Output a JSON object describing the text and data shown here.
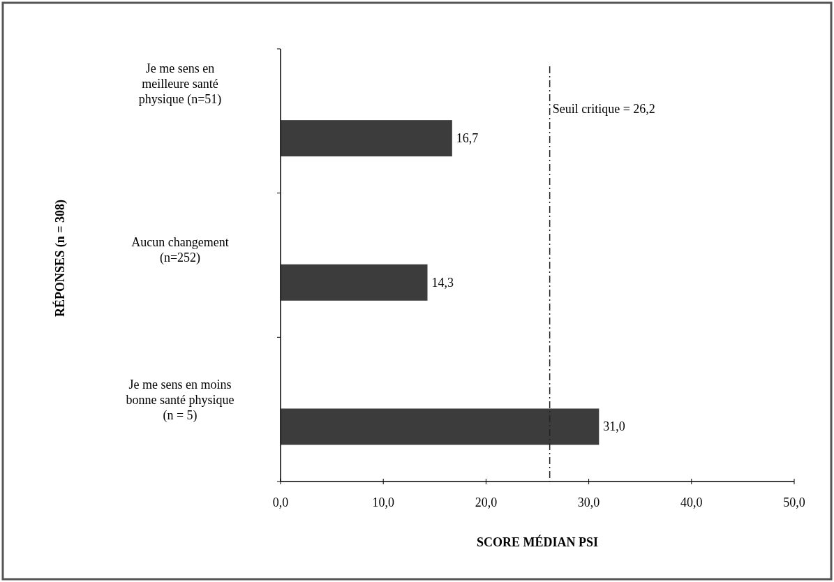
{
  "chart_data": {
    "type": "bar",
    "orientation": "horizontal",
    "xlabel": "SCORE MÉDIAN PSI",
    "ylabel": "RÉPONSES (n = 308)",
    "categories": [
      "Je me sens en meilleure santé physique (n=51)",
      "Aucun changement (n=252)",
      "Je me sens en moins bonne santé physique (n = 5)"
    ],
    "values": [
      16.7,
      14.3,
      31.0
    ],
    "color": "#3c3c3c",
    "value_labels": [
      "16,7",
      "14,3",
      "31,0"
    ],
    "xlim": [
      0,
      50
    ],
    "xticks": [
      {
        "value": 0,
        "label": "0,0"
      },
      {
        "value": 10,
        "label": "10,0"
      },
      {
        "value": 20,
        "label": "20,0"
      },
      {
        "value": 30,
        "label": "30,0"
      },
      {
        "value": 40,
        "label": "40,0"
      },
      {
        "value": 50,
        "label": "50,0"
      }
    ],
    "ref_lines": [
      {
        "axis": "x",
        "value": 26.2,
        "label": "Seuil critique = 26,2",
        "color": "#222222",
        "line_style": "dashdot"
      }
    ],
    "grid": false
  }
}
